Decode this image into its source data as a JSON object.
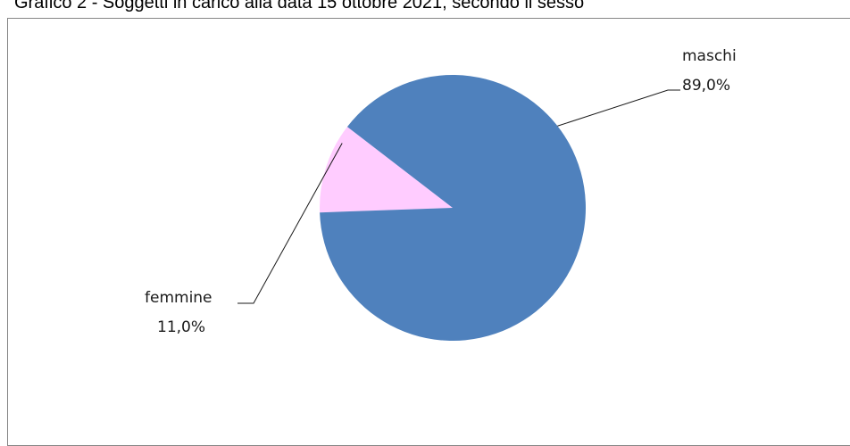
{
  "title": "Grafico 2 - Soggetti in carico alla data 15 ottobre 2021, secondo il sesso",
  "chart_data": {
    "type": "pie",
    "title": "Grafico 2 - Soggetti in carico alla data 15 ottobre 2021, secondo il sesso",
    "categories": [
      "maschi",
      "femmine"
    ],
    "values": [
      89.0,
      11.0
    ],
    "value_labels": [
      "89,0%",
      "11,0%"
    ],
    "colors": [
      "#4F81BD",
      "#FFCCFF"
    ],
    "legend": "none"
  }
}
